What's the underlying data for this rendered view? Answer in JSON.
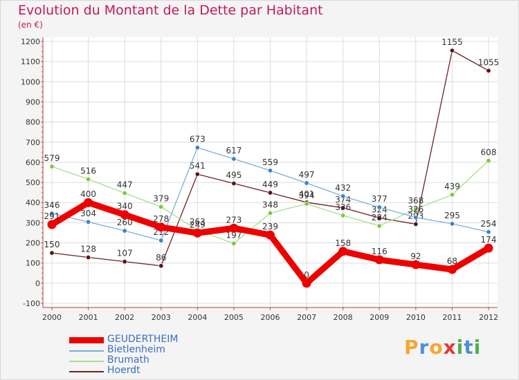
{
  "title": "Evolution du Montant de la Dette par Habitant",
  "unit": "(en €)",
  "logo": {
    "text": "Proxiti",
    "letters": [
      "P",
      "r",
      "o",
      "x",
      "i",
      "t",
      "i"
    ],
    "colors": [
      "#f7a62f",
      "#4a90d9",
      "#f7a62f",
      "#e53935",
      "#4caf50",
      "#4a90d9",
      "#4caf50"
    ]
  },
  "chart_data": {
    "type": "line",
    "x": [
      "2000",
      "2001",
      "2002",
      "2003",
      "2004",
      "2005",
      "2006",
      "2007",
      "2008",
      "2009",
      "2010",
      "2011",
      "2012"
    ],
    "ylim": [
      -100,
      1200
    ],
    "yticks": [
      "-100",
      "0",
      "100",
      "200",
      "300",
      "400",
      "500",
      "600",
      "700",
      "800",
      "900",
      "1000",
      "1100",
      "1200"
    ],
    "grid": true,
    "legend_position": "bottom-left",
    "series": [
      {
        "name": "Hoerdt",
        "color": "#6d1f22",
        "pointColor": "#5a1418",
        "width": 1.3,
        "values": [
          150,
          128,
          107,
          86,
          541,
          495,
          449,
          401,
          374,
          324,
          293,
          1155,
          1055
        ],
        "labels": [
          "150",
          "128",
          "107",
          "86",
          "541",
          "495",
          "449",
          "401",
          "374",
          "324",
          "293",
          "1155",
          "1055"
        ]
      },
      {
        "name": "Brumath",
        "color": "#a6e08a",
        "pointColor": "#7ac943",
        "width": 1.3,
        "values": [
          579,
          516,
          447,
          379,
          263,
          197,
          348,
          394,
          336,
          284,
          368,
          439,
          608
        ],
        "labels": [
          "579",
          "516",
          "447",
          "379",
          "263",
          "197",
          "348",
          "394",
          "336",
          "284",
          "368",
          "439",
          "608"
        ]
      },
      {
        "name": "Bietlenheim",
        "color": "#7aaed6",
        "pointColor": "#3d83c8",
        "width": 1.3,
        "values": [
          346,
          304,
          260,
          212,
          673,
          617,
          559,
          497,
          432,
          377,
          326,
          295,
          254
        ],
        "labels": [
          "346",
          "304",
          "260",
          "212",
          "673",
          "617",
          "559",
          "497",
          "432",
          "377",
          "326",
          "295",
          "254"
        ]
      },
      {
        "name": "GEUDERTHEIM",
        "color": "#ee0000",
        "pointColor": "#ee0000",
        "width": 9,
        "values": [
          291,
          400,
          340,
          278,
          249,
          273,
          239,
          0,
          158,
          116,
          92,
          68,
          174
        ],
        "labels": [
          "291",
          "400",
          "340",
          "278",
          "249",
          "273",
          "239",
          "0",
          "158",
          "116",
          "92",
          "68",
          "174"
        ]
      }
    ],
    "legend": [
      {
        "name": "GEUDERTHEIM",
        "color": "#ee0000",
        "thick": true
      },
      {
        "name": "Bietlenheim",
        "color": "#7aaed6",
        "thick": false
      },
      {
        "name": "Brumath",
        "color": "#a6e08a",
        "thick": false
      },
      {
        "name": "Hoerdt",
        "color": "#6d1f22",
        "thick": false
      }
    ]
  }
}
